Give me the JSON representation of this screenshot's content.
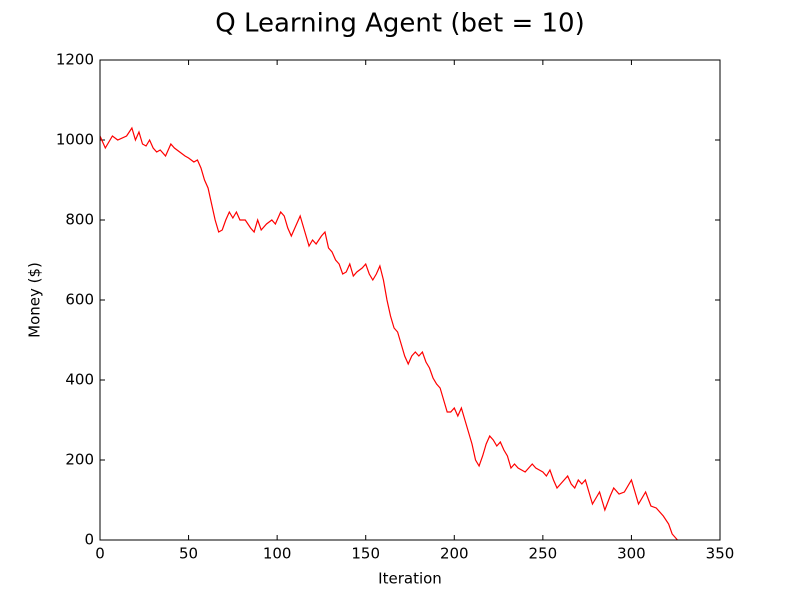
{
  "chart_data": {
    "type": "line",
    "title": "Q Learning Agent (bet = 10)",
    "xlabel": "Iteration",
    "ylabel": "Money ($)",
    "xlim": [
      0,
      350
    ],
    "ylim": [
      0,
      1200
    ],
    "xticks": [
      0,
      50,
      100,
      150,
      200,
      250,
      300,
      350
    ],
    "yticks": [
      0,
      200,
      400,
      600,
      800,
      1000,
      1200
    ],
    "series": [
      {
        "color": "#ff0000",
        "x": [
          0,
          3,
          7,
          10,
          15,
          18,
          20,
          22,
          24,
          26,
          28,
          30,
          32,
          34,
          37,
          40,
          42,
          45,
          48,
          50,
          53,
          55,
          57,
          59,
          61,
          63,
          65,
          67,
          69,
          71,
          73,
          75,
          77,
          79,
          82,
          85,
          87,
          89,
          91,
          94,
          97,
          99,
          102,
          104,
          106,
          108,
          110,
          113,
          115,
          118,
          120,
          122,
          125,
          127,
          129,
          131,
          133,
          135,
          137,
          139,
          141,
          143,
          145,
          148,
          150,
          152,
          154,
          156,
          158,
          160,
          162,
          164,
          166,
          168,
          170,
          172,
          174,
          176,
          178,
          180,
          182,
          184,
          186,
          188,
          190,
          192,
          194,
          196,
          198,
          200,
          202,
          204,
          206,
          208,
          210,
          212,
          214,
          216,
          218,
          220,
          222,
          224,
          226,
          228,
          230,
          232,
          234,
          236,
          238,
          240,
          242,
          244,
          246,
          248,
          250,
          252,
          254,
          256,
          258,
          260,
          262,
          264,
          266,
          268,
          270,
          272,
          274,
          276,
          278,
          280,
          282,
          285,
          288,
          290,
          293,
          296,
          300,
          304,
          308,
          311,
          314,
          318,
          321,
          323,
          326
        ],
        "values": [
          1010,
          980,
          1010,
          1000,
          1010,
          1030,
          1000,
          1020,
          990,
          985,
          1000,
          980,
          970,
          975,
          960,
          990,
          980,
          970,
          960,
          955,
          945,
          950,
          930,
          900,
          880,
          840,
          800,
          770,
          775,
          800,
          820,
          805,
          820,
          800,
          800,
          780,
          770,
          800,
          775,
          790,
          800,
          790,
          820,
          810,
          780,
          760,
          780,
          810,
          780,
          735,
          750,
          740,
          760,
          770,
          730,
          720,
          700,
          690,
          665,
          670,
          690,
          660,
          670,
          680,
          690,
          665,
          650,
          665,
          685,
          650,
          600,
          560,
          530,
          520,
          490,
          460,
          440,
          460,
          470,
          460,
          470,
          445,
          430,
          405,
          390,
          380,
          350,
          320,
          320,
          330,
          310,
          330,
          300,
          270,
          240,
          200,
          185,
          210,
          240,
          260,
          250,
          235,
          245,
          225,
          210,
          180,
          190,
          180,
          175,
          170,
          180,
          190,
          180,
          175,
          170,
          160,
          175,
          150,
          130,
          140,
          150,
          160,
          140,
          130,
          150,
          140,
          150,
          120,
          90,
          105,
          120,
          75,
          110,
          130,
          115,
          120,
          150,
          90,
          120,
          85,
          80,
          60,
          40,
          15,
          0
        ]
      }
    ]
  }
}
